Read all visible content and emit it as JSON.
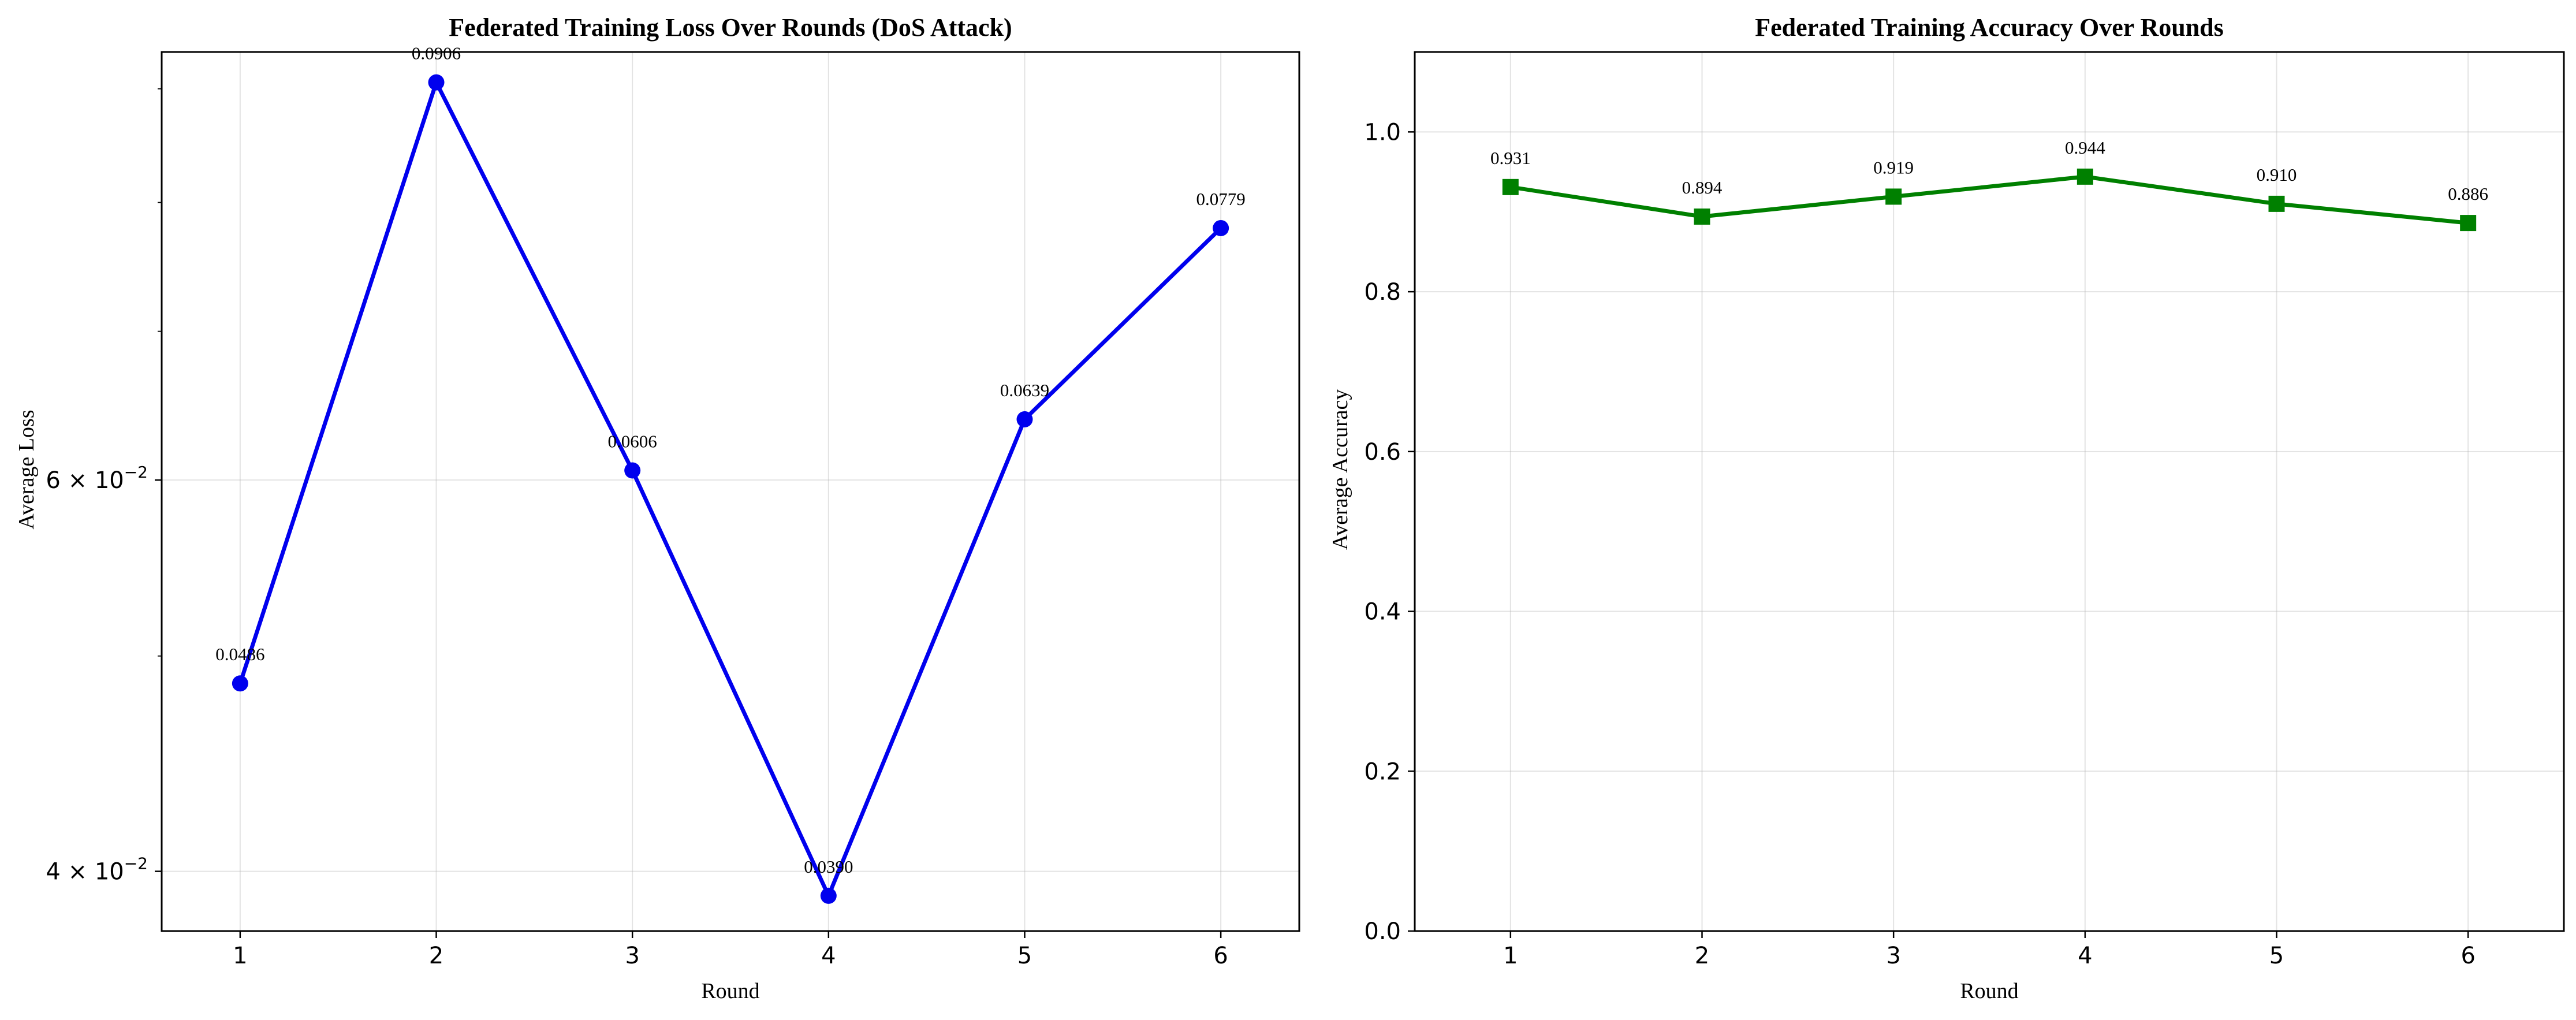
{
  "chart_data": [
    {
      "type": "line",
      "title": "Federated Training Loss Over Rounds (DoS Attack)",
      "xlabel": "Round",
      "ylabel": "Average Loss",
      "x": [
        1,
        2,
        3,
        4,
        5,
        6
      ],
      "yscale": "log",
      "ylim": [
        0.0376,
        0.0935
      ],
      "yticks": [
        {
          "value": 0.04,
          "mantissa": "4",
          "exponent": "−2"
        },
        {
          "value": 0.06,
          "mantissa": "6",
          "exponent": "−2"
        }
      ],
      "yminor_ticks": [
        0.05,
        0.07,
        0.08,
        0.09
      ],
      "grid": true,
      "color": "#0000ee",
      "marker": "circle",
      "series": [
        {
          "values": [
            0.0486,
            0.0906,
            0.0606,
            0.039,
            0.0639,
            0.0779
          ],
          "labels": [
            "0.0486",
            "0.0906",
            "0.0606",
            "0.0390",
            "0.0639",
            "0.0779"
          ]
        }
      ]
    },
    {
      "type": "line",
      "title": "Federated Training Accuracy Over Rounds",
      "xlabel": "Round",
      "ylabel": "Average Accuracy",
      "x": [
        1,
        2,
        3,
        4,
        5,
        6
      ],
      "yscale": "linear",
      "ylim": [
        0.0,
        1.1
      ],
      "yticks": [
        {
          "value": 0.0,
          "label": "0.0"
        },
        {
          "value": 0.2,
          "label": "0.2"
        },
        {
          "value": 0.4,
          "label": "0.4"
        },
        {
          "value": 0.6,
          "label": "0.6"
        },
        {
          "value": 0.8,
          "label": "0.8"
        },
        {
          "value": 1.0,
          "label": "1.0"
        }
      ],
      "grid": true,
      "color": "#008000",
      "marker": "square",
      "series": [
        {
          "values": [
            0.931,
            0.894,
            0.919,
            0.944,
            0.91,
            0.886
          ],
          "labels": [
            "0.931",
            "0.894",
            "0.919",
            "0.944",
            "0.910",
            "0.886"
          ]
        }
      ]
    }
  ]
}
